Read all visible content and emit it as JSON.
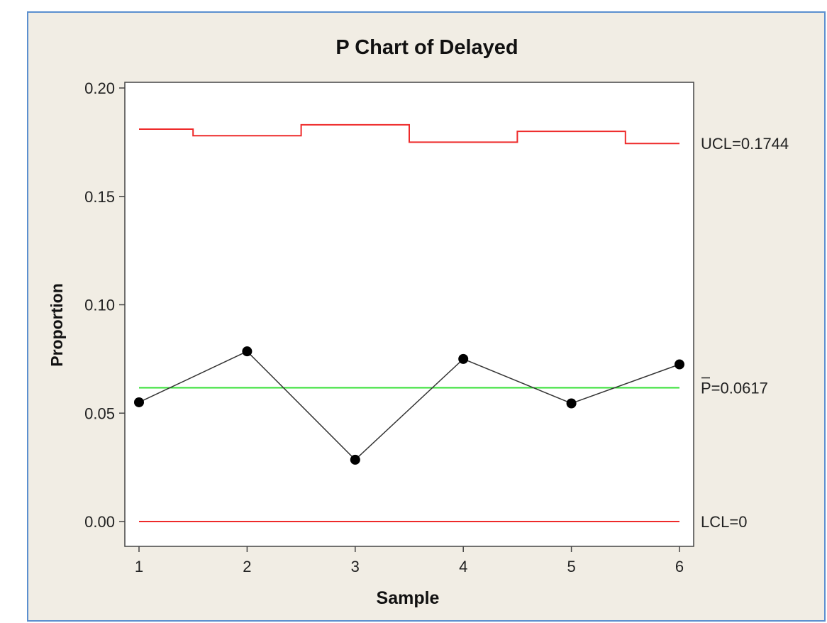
{
  "chart_data": {
    "type": "line",
    "title": "P Chart of Delayed",
    "xlabel": "Sample",
    "ylabel": "Proportion",
    "x": [
      1,
      2,
      3,
      4,
      5,
      6
    ],
    "ylim": [
      0,
      0.2
    ],
    "yticks": [
      "0.00",
      "0.05",
      "0.10",
      "0.15",
      "0.20"
    ],
    "xticks": [
      "1",
      "2",
      "3",
      "4",
      "5",
      "6"
    ],
    "grid": false,
    "series": [
      {
        "values": [
          0.055,
          0.0785,
          0.0285,
          0.075,
          0.0545,
          0.0725
        ],
        "color": "#000000"
      }
    ],
    "center_line": {
      "value": 0.0617,
      "label": "P=0.0617",
      "color": "#33e033"
    },
    "ucl": {
      "values": [
        0.181,
        0.178,
        0.183,
        0.175,
        0.18,
        0.1744
      ],
      "label": "UCL=0.1744",
      "color": "#ee2a2a"
    },
    "lcl": {
      "value": 0,
      "label": "LCL=0",
      "color": "#ee2a2a"
    }
  }
}
